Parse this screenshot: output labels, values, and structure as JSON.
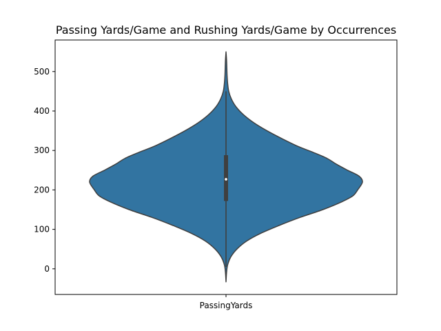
{
  "chart_data": {
    "type": "violin",
    "title": "Passing Yards/Game and Rushing Yards/Game by Occurrences",
    "xlabel": "",
    "ylabel": "",
    "categories": [
      "PassingYards"
    ],
    "ylim": [
      -65,
      580
    ],
    "yticks": [
      0,
      100,
      200,
      300,
      400,
      500
    ],
    "grid": false,
    "legend": "none",
    "colors": {
      "violin_fill": "#3274a1",
      "violin_edge": "#3f3f3f",
      "box": "#3f3f3f",
      "median": "#ffffff"
    },
    "series": [
      {
        "category": "PassingYards",
        "min": -33,
        "q1": 172,
        "median": 227,
        "q3": 288,
        "max": 550,
        "whisker_low": 5,
        "whisker_high": 450,
        "density": [
          {
            "y": -33,
            "w": 0.0
          },
          {
            "y": -10,
            "w": 0.004
          },
          {
            "y": 10,
            "w": 0.012
          },
          {
            "y": 30,
            "w": 0.035
          },
          {
            "y": 50,
            "w": 0.08
          },
          {
            "y": 70,
            "w": 0.15
          },
          {
            "y": 90,
            "w": 0.255
          },
          {
            "y": 110,
            "w": 0.39
          },
          {
            "y": 130,
            "w": 0.54
          },
          {
            "y": 150,
            "w": 0.71
          },
          {
            "y": 170,
            "w": 0.85
          },
          {
            "y": 185,
            "w": 0.93
          },
          {
            "y": 200,
            "w": 0.965
          },
          {
            "y": 220,
            "w": 1.0
          },
          {
            "y": 235,
            "w": 0.975
          },
          {
            "y": 250,
            "w": 0.89
          },
          {
            "y": 265,
            "w": 0.81
          },
          {
            "y": 280,
            "w": 0.74
          },
          {
            "y": 295,
            "w": 0.64
          },
          {
            "y": 310,
            "w": 0.53
          },
          {
            "y": 330,
            "w": 0.41
          },
          {
            "y": 350,
            "w": 0.3
          },
          {
            "y": 370,
            "w": 0.205
          },
          {
            "y": 390,
            "w": 0.13
          },
          {
            "y": 410,
            "w": 0.075
          },
          {
            "y": 430,
            "w": 0.04
          },
          {
            "y": 450,
            "w": 0.02
          },
          {
            "y": 470,
            "w": 0.012
          },
          {
            "y": 490,
            "w": 0.008
          },
          {
            "y": 510,
            "w": 0.006
          },
          {
            "y": 530,
            "w": 0.004
          },
          {
            "y": 550,
            "w": 0.0
          }
        ]
      }
    ]
  }
}
